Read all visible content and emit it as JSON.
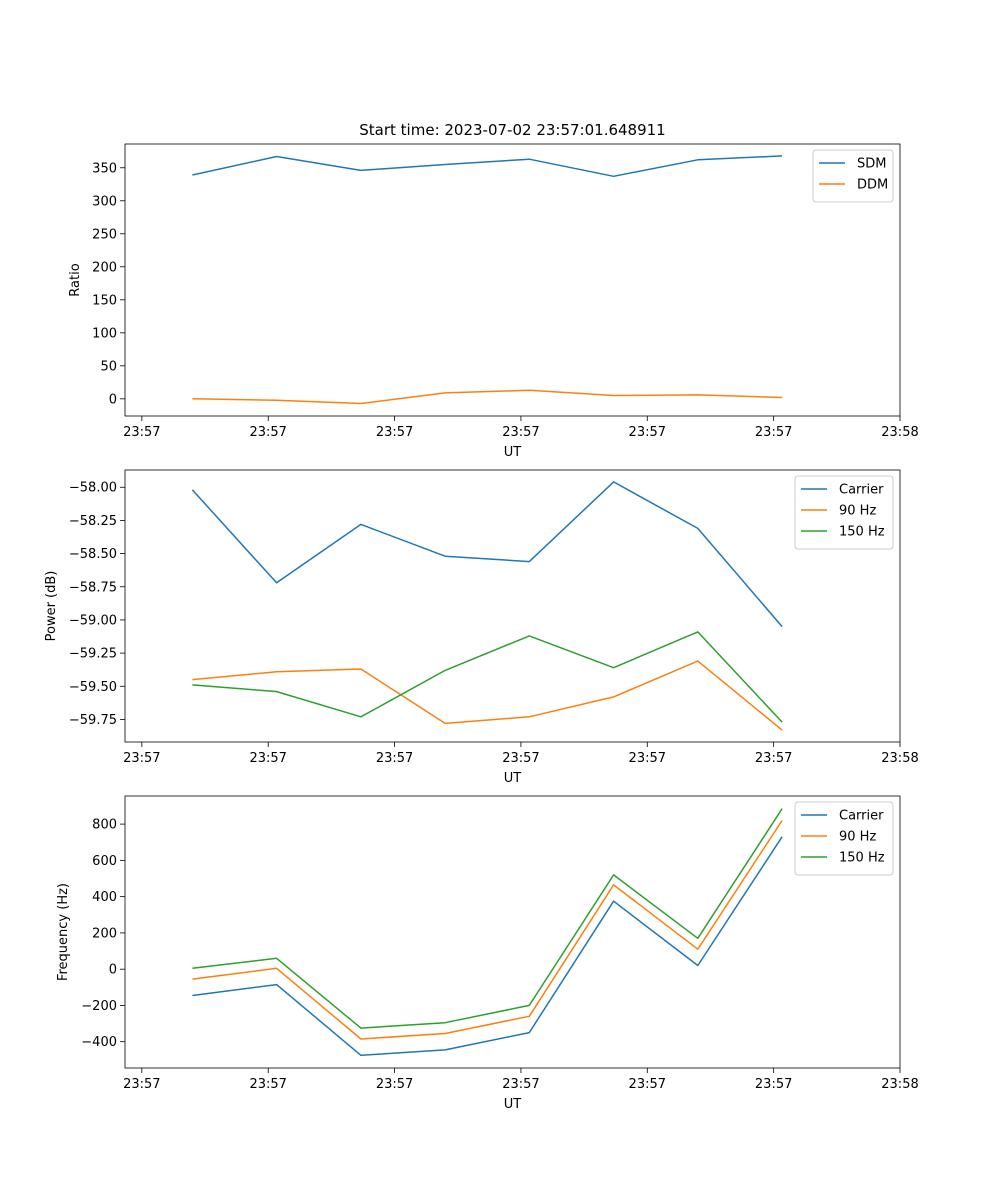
{
  "figure_title": "Start time: 2023-07-02 23:57:01.648911",
  "colors": {
    "blue": "#1f77b4",
    "orange": "#ff7f0e",
    "green": "#2ca02c"
  },
  "chart_data": [
    {
      "type": "line",
      "title": "Start time: 2023-07-02 23:57:01.648911",
      "xlabel": "UT",
      "ylabel": "Ratio",
      "x": [
        1,
        2,
        3,
        4,
        5,
        6,
        7,
        8
      ],
      "xlim": [
        0.2,
        9.4
      ],
      "ylim": [
        -26,
        386
      ],
      "xticks": [
        0.4,
        1.9,
        3.4,
        4.9,
        6.4,
        7.9,
        9.4
      ],
      "xtick_labels": [
        "23:57",
        "23:57",
        "23:57",
        "23:57",
        "23:57",
        "23:57",
        "23:58"
      ],
      "yticks": [
        0,
        50,
        100,
        150,
        200,
        250,
        300,
        350
      ],
      "ytick_labels": [
        "0",
        "50",
        "100",
        "150",
        "200",
        "250",
        "300",
        "350"
      ],
      "legend_position": "top-right",
      "series": [
        {
          "name": "SDM",
          "color": "#1f77b4",
          "values": [
            339,
            367,
            346,
            355,
            363,
            337,
            362,
            368
          ]
        },
        {
          "name": "DDM",
          "color": "#ff7f0e",
          "values": [
            0,
            -2,
            -7,
            9,
            13,
            5,
            6,
            2
          ]
        }
      ]
    },
    {
      "type": "line",
      "title": "",
      "xlabel": "UT",
      "ylabel": "Power (dB)",
      "x": [
        1,
        2,
        3,
        4,
        5,
        6,
        7,
        8
      ],
      "xlim": [
        0.2,
        9.4
      ],
      "ylim": [
        -59.92,
        -57.87
      ],
      "xticks": [
        0.4,
        1.9,
        3.4,
        4.9,
        6.4,
        7.9,
        9.4
      ],
      "xtick_labels": [
        "23:57",
        "23:57",
        "23:57",
        "23:57",
        "23:57",
        "23:57",
        "23:58"
      ],
      "yticks": [
        -59.75,
        -59.5,
        -59.25,
        -59.0,
        -58.75,
        -58.5,
        -58.25,
        -58.0
      ],
      "ytick_labels": [
        "−59.75",
        "−59.50",
        "−59.25",
        "−59.00",
        "−58.75",
        "−58.50",
        "−58.25",
        "−58.00"
      ],
      "legend_position": "top-right",
      "series": [
        {
          "name": "Carrier",
          "color": "#1f77b4",
          "values": [
            -58.02,
            -58.72,
            -58.28,
            -58.52,
            -58.56,
            -57.96,
            -58.31,
            -59.05
          ]
        },
        {
          "name": "90 Hz",
          "color": "#ff7f0e",
          "values": [
            -59.45,
            -59.39,
            -59.37,
            -59.78,
            -59.73,
            -59.58,
            -59.31,
            -59.83
          ]
        },
        {
          "name": "150 Hz",
          "color": "#2ca02c",
          "values": [
            -59.49,
            -59.54,
            -59.73,
            -59.38,
            -59.12,
            -59.36,
            -59.09,
            -59.77
          ]
        }
      ]
    },
    {
      "type": "line",
      "title": "",
      "xlabel": "UT",
      "ylabel": "Frequency (Hz)",
      "x": [
        1,
        2,
        3,
        4,
        5,
        6,
        7,
        8
      ],
      "xlim": [
        0.2,
        9.4
      ],
      "ylim": [
        -545,
        955
      ],
      "xticks": [
        0.4,
        1.9,
        3.4,
        4.9,
        6.4,
        7.9,
        9.4
      ],
      "xtick_labels": [
        "23:57",
        "23:57",
        "23:57",
        "23:57",
        "23:57",
        "23:57",
        "23:58"
      ],
      "yticks": [
        -400,
        -200,
        0,
        200,
        400,
        600,
        800
      ],
      "ytick_labels": [
        "−400",
        "−200",
        "0",
        "200",
        "400",
        "600",
        "800"
      ],
      "legend_position": "top-right",
      "series": [
        {
          "name": "Carrier",
          "color": "#1f77b4",
          "values": [
            -145,
            -85,
            -475,
            -445,
            -350,
            375,
            20,
            730
          ]
        },
        {
          "name": "90 Hz",
          "color": "#ff7f0e",
          "values": [
            -55,
            5,
            -385,
            -355,
            -260,
            465,
            110,
            820
          ]
        },
        {
          "name": "150 Hz",
          "color": "#2ca02c",
          "values": [
            5,
            60,
            -325,
            -295,
            -200,
            520,
            170,
            885
          ]
        }
      ]
    }
  ]
}
